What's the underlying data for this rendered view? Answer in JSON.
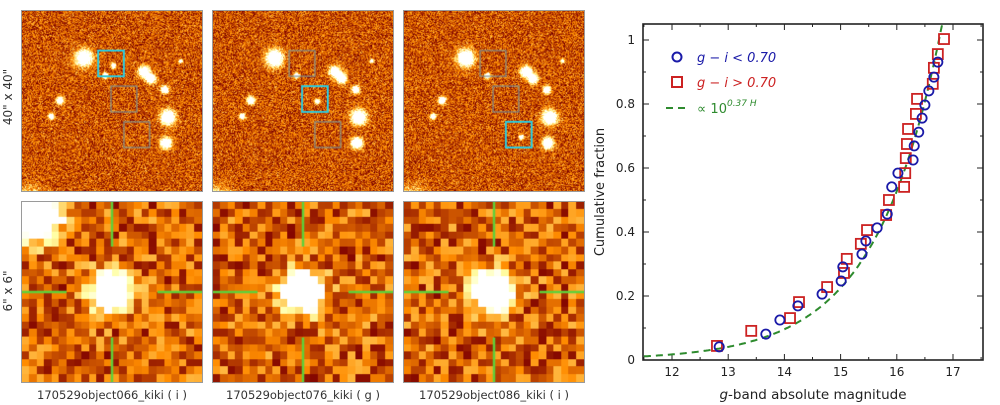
{
  "figure": {
    "row_labels": [
      "40\" x 40\"",
      "6\" x 6\""
    ],
    "panels": [
      {
        "caption": "170529object066_kiki ( i )",
        "highlight_index": 0,
        "seed": 11
      },
      {
        "caption": "170529object076_kiki ( g )",
        "highlight_index": 1,
        "seed": 23
      },
      {
        "caption": "170529object086_kiki ( i )",
        "highlight_index": 2,
        "seed": 37
      }
    ],
    "colors": {
      "highlight_box": "#33c6d6",
      "other_box": "#7f8f8f",
      "crosshair": "#5fd03a"
    }
  },
  "chart_data": {
    "type": "scatter",
    "title": "",
    "xlabel_italic": "g",
    "xlabel_rest": "-band absolute magnitude",
    "ylabel": "Cumulative fraction",
    "xlim": [
      11.5,
      17.55
    ],
    "ylim": [
      0,
      1.075
    ],
    "xticks": [
      12,
      13,
      14,
      15,
      16,
      17
    ],
    "yticks": [
      0,
      0.2,
      0.4,
      0.6,
      0.8,
      1
    ],
    "ytick_labels": [
      "0",
      "0.2",
      "0.4",
      "0.6",
      "0.8",
      "1"
    ],
    "grid": false,
    "legend_position": "top-left",
    "series": [
      {
        "name": "g − i < 0.70",
        "marker": "circle",
        "color": "#1a1aa8",
        "points": [
          [
            12.84,
            0.041
          ],
          [
            13.67,
            0.081
          ],
          [
            13.92,
            0.125
          ],
          [
            14.24,
            0.169
          ],
          [
            14.67,
            0.206
          ],
          [
            15.01,
            0.247
          ],
          [
            15.04,
            0.291
          ],
          [
            15.38,
            0.331
          ],
          [
            15.45,
            0.372
          ],
          [
            15.65,
            0.413
          ],
          [
            15.83,
            0.456
          ],
          [
            15.91,
            0.541
          ],
          [
            16.02,
            0.584
          ],
          [
            16.29,
            0.625
          ],
          [
            16.31,
            0.669
          ],
          [
            16.39,
            0.712
          ],
          [
            16.45,
            0.756
          ],
          [
            16.5,
            0.797
          ],
          [
            16.57,
            0.841
          ],
          [
            16.66,
            0.884
          ],
          [
            16.73,
            0.931
          ]
        ]
      },
      {
        "name": "g − i > 0.70",
        "marker": "square",
        "color": "#cc2222",
        "points": [
          [
            12.8,
            0.044
          ],
          [
            13.41,
            0.091
          ],
          [
            14.1,
            0.131
          ],
          [
            14.26,
            0.181
          ],
          [
            14.76,
            0.228
          ],
          [
            15.06,
            0.272
          ],
          [
            15.11,
            0.316
          ],
          [
            15.36,
            0.363
          ],
          [
            15.47,
            0.406
          ],
          [
            15.81,
            0.453
          ],
          [
            15.86,
            0.5
          ],
          [
            16.13,
            0.541
          ],
          [
            16.15,
            0.584
          ],
          [
            16.16,
            0.631
          ],
          [
            16.18,
            0.675
          ],
          [
            16.2,
            0.722
          ],
          [
            16.34,
            0.769
          ],
          [
            16.36,
            0.816
          ],
          [
            16.64,
            0.863
          ],
          [
            16.66,
            0.913
          ],
          [
            16.73,
            0.956
          ],
          [
            16.84,
            1.003
          ]
        ]
      },
      {
        "name": "∝ 10^(0.37 H)",
        "label_base": "∝ 10",
        "label_exp": "0.37 H",
        "marker": "dashed-line",
        "color": "#2e8b2e",
        "model": {
          "exponent": 0.37,
          "normalization_H": 16.75,
          "H_range": [
            11.5,
            16.82
          ]
        }
      }
    ]
  }
}
